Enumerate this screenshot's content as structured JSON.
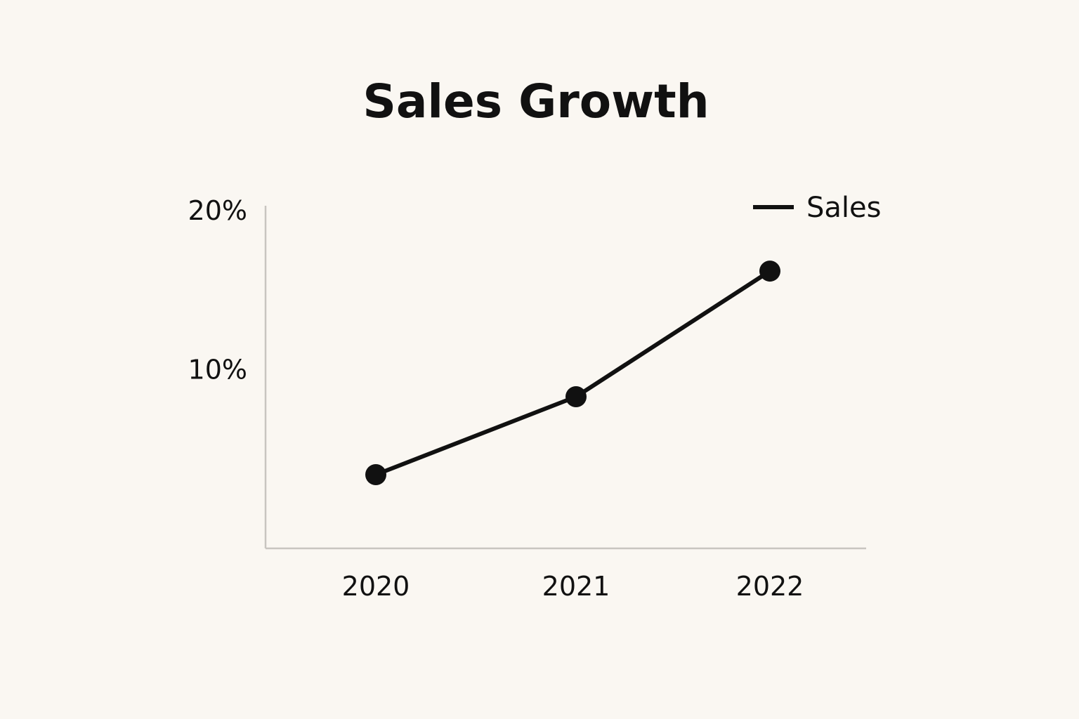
{
  "chart_data": {
    "type": "line",
    "title": "Sales Growth",
    "xlabel": "",
    "ylabel": "",
    "categories": [
      "2020",
      "2021",
      "2022"
    ],
    "series": [
      {
        "name": "Sales",
        "values": [
          3.4,
          8.3,
          16.2
        ]
      }
    ],
    "ylim": [
      0,
      20
    ],
    "yticks": [
      {
        "value": 10,
        "label": "10%"
      },
      {
        "value": 20,
        "label": "20%"
      }
    ],
    "grid": false,
    "legend_position": "top-right",
    "line_color": "#111111",
    "axis_color": "#c8c5c0",
    "background": "#faf7f2"
  }
}
